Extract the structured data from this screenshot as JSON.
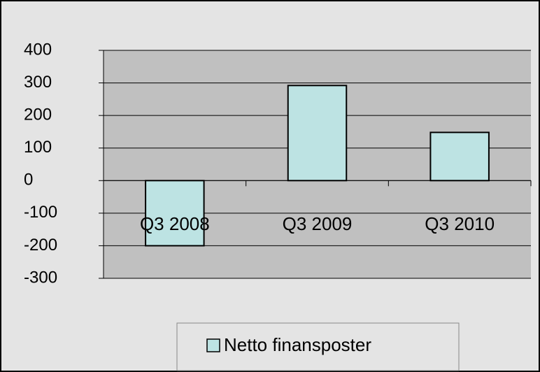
{
  "chart_data": {
    "type": "bar",
    "categories": [
      "Q3 2008",
      "Q3 2009",
      "Q3 2010"
    ],
    "series": [
      {
        "name": "Netto finansposter",
        "color": "#bde3e3",
        "values": [
          -200,
          292,
          148
        ]
      }
    ],
    "ylim": [
      -300,
      400
    ],
    "yticks": [
      -300,
      -200,
      -100,
      0,
      100,
      200,
      300,
      400
    ],
    "grid": true,
    "legend": "bottom"
  }
}
